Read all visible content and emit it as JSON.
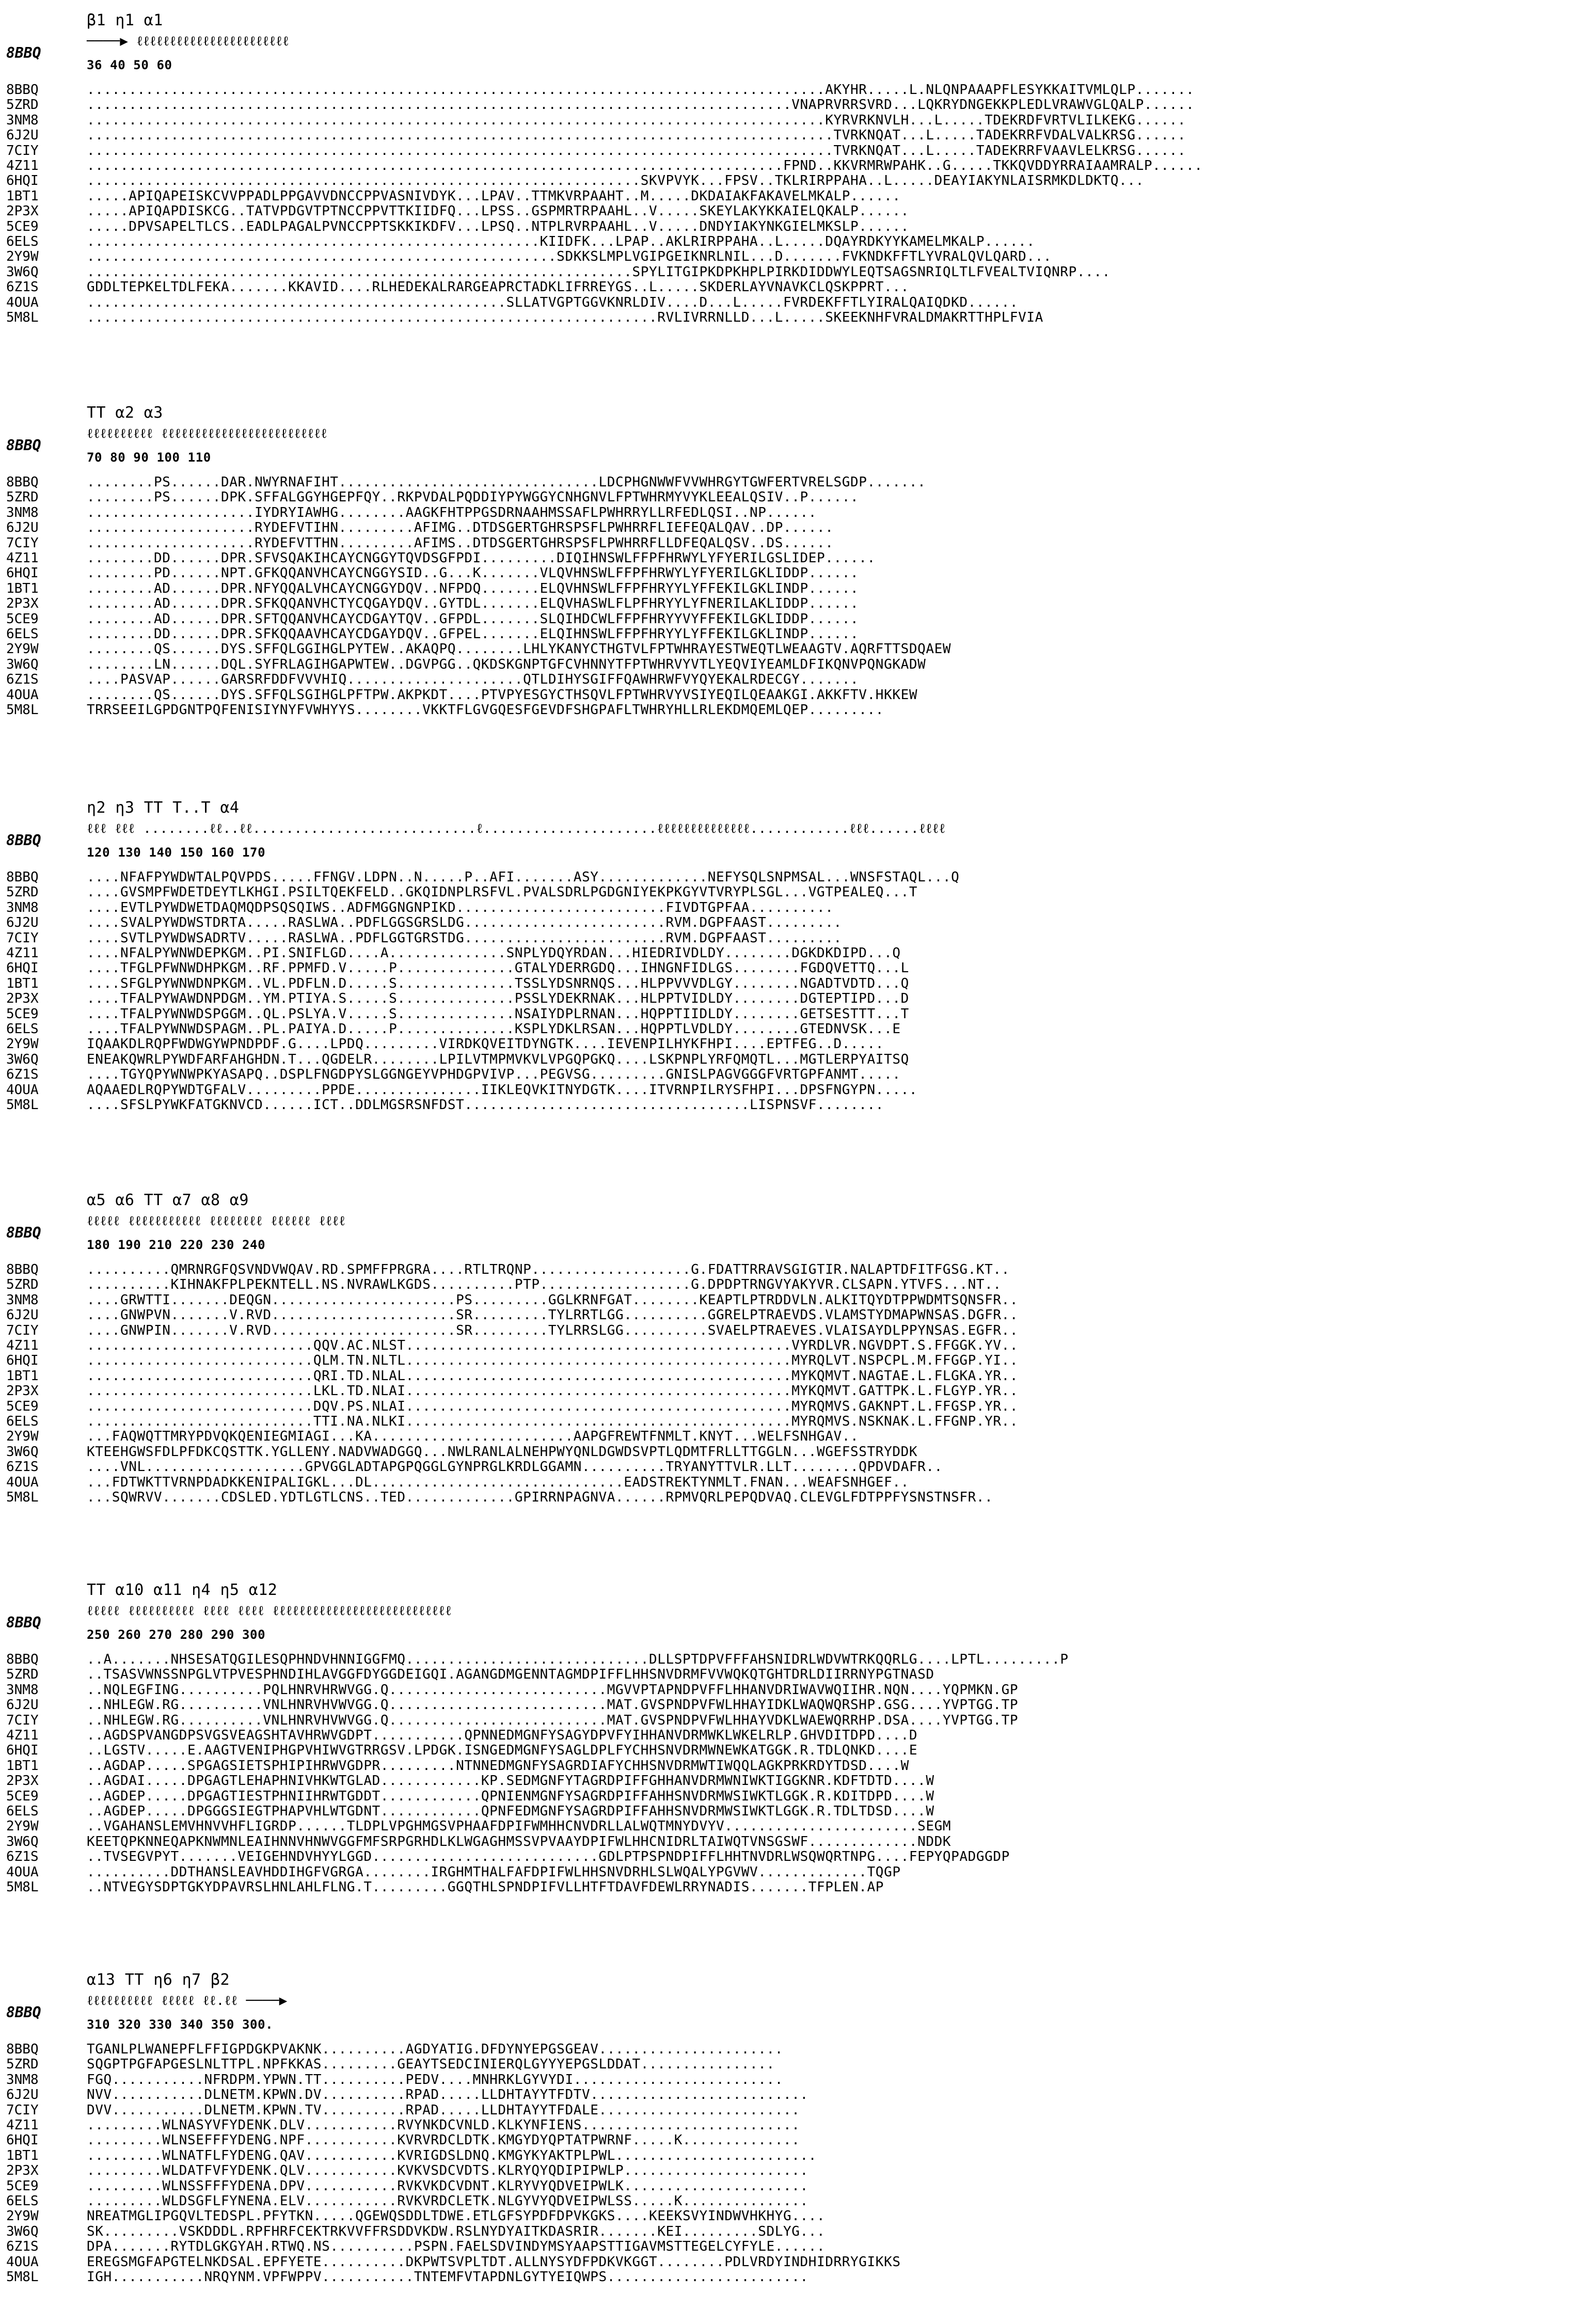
{
  "reference": "8BBQ",
  "blocks": [
    {
      "ss": "                                                                                                β1           η1                α1",
      "ss_sym": "                                                                                          ────▶              ℓℓℓℓℓℓℓℓℓℓℓℓℓℓℓℓℓℓℓℓℓℓℓ",
      "nums": "                                                                                       36     40                   50             60",
      "rows": [
        {
          "id": "8BBQ",
          "seq": "........................................................................................AKYHR.....L.NLQNPAAAPFLESYKKAITVMLQLP......."
        },
        {
          "id": "5ZRD",
          "seq": "....................................................................................VNAPRVRRSVRD...LQKRYDNGEKKPLEDLVRAWVGLQALP......"
        },
        {
          "id": "3NM8",
          "seq": "........................................................................................KYRVRKNVLH...L.....TDEKRDFVRTVLILKEKG......"
        },
        {
          "id": "6J2U",
          "seq": ".........................................................................................TVRKNQAT...L.....TADEKRRFVDALVALKRSG......"
        },
        {
          "id": "7CIY",
          "seq": ".........................................................................................TVRKNQAT...L.....TADEKRRFVAAVLELKRSG......"
        },
        {
          "id": "4Z11",
          "seq": "...................................................................................FPND..KKVRMRWPAHK..G.....TKKQVDDYRRAIAAMRALP......"
        },
        {
          "id": "6HQI",
          "seq": "..................................................................SKVPVYK...FPSV..TKLRIRPPAHA..L.....DEAYIAKYNLAISRMKDLDKTQ..."
        },
        {
          "id": "1BT1",
          "seq": ".....APIQAPEISKCVVPPADLPPGAVVDNCCPPVASNIVDYK...LPAV..TTMKVRPAAHT..M.....DKDAIAKFAKAVELMKALP......"
        },
        {
          "id": "2P3X",
          "seq": ".....APIQAPDISKCG..TATVPDGVTPTNCCPPVTTKIIDFQ...LPSS..GSPMRTRPAAHL..V.....SKEYLAKYKKAIELQKALP......"
        },
        {
          "id": "5CE9",
          "seq": ".....DPVSAPELTLCS..EADLPAGALPVNCCPPTSKKIKDFV...LPSQ..NTPLRVRPAAHL..V.....DNDYIAKYNKGIELMKSLP......"
        },
        {
          "id": "6ELS",
          "seq": "......................................................KIIDFK...LPAP..AKLRIRPPAHA..L.....DQAYRDKYYKAMELMKALP......"
        },
        {
          "id": "2Y9W",
          "seq": "........................................................SDKKSLMPLVGIPGEIKNRLNIL...D.......FVKNDKFFTLYVRALQVLQARD..."
        },
        {
          "id": "3W6Q",
          "seq": ".................................................................SPYLITGIPKDPKHPLPIRKDIDDWYLEQTSAGSNRIQLTLFVEALTVIQNRP...."
        },
        {
          "id": "6Z1S",
          "seq": "GDDLTEPKELTDLFEKA.......KKAVID....RLHEDEKALRARGEAPRCTADKLIFRREYGS..L.....SKDERLAYVNAVKCLQSKPPRT..."
        },
        {
          "id": "4OUA",
          "seq": "..................................................SLLATVGPTGGVKNRLDIV....D...L.....FVRDEKFFTLYIRALQAIQDKD......"
        },
        {
          "id": "5M8L",
          "seq": "....................................................................RVLIVRRNLLD...L.....SKEEKNHFVRALDMAKRTTHPLFVIA"
        }
      ]
    },
    {
      "ss": "                  TT                                  α2                                             α3",
      "ss_sym": "                                    ℓℓℓℓℓℓℓℓℓℓ                                        ℓℓℓℓℓℓℓℓℓℓℓℓℓℓℓℓℓℓℓℓℓℓℓℓℓ",
      "nums": "                              70              80                                     90        100          110",
      "rows": [
        {
          "id": "8BBQ",
          "seq": "........PS......DAR.NWYRNAFIHT...............................LDCPHGNWWFVVWHRGYTGWFERTVRELSGDP......."
        },
        {
          "id": "5ZRD",
          "seq": "........PS......DPK.SFFALGGYHGEPFQY..RKPVDALPQDDIYPYWGGYCNHGNVLFPTWHRMYVYKLEEALQSIV..P......"
        },
        {
          "id": "3NM8",
          "seq": "....................IYDRYIAWHG........AAGKFHTPPGSDRNAAHMSSAFLPWHRRYLLRFEDLQSI..NP......"
        },
        {
          "id": "6J2U",
          "seq": "....................RYDEFVTIHN.........AFIMG..DTDSGERTGHRSPSFLPWHRRFLIEFEQALQAV..DP......"
        },
        {
          "id": "7CIY",
          "seq": "....................RYDEFVTTHN.........AFIMS..DTDSGERTGHRSPSFLPWHRRFLLDFEQALQSV..DS......"
        },
        {
          "id": "4Z11",
          "seq": "........DD......DPR.SFVSQAKIHCAYCNGGYTQVDSGFPDI.........DIQIHNSWLFFPFHRWYLYFYERILGSLIDEP......"
        },
        {
          "id": "6HQI",
          "seq": "........PD......NPT.GFKQQANVHCAYCNGGYSID..G...K.......VLQVHNSWLFFPFHRWYLYFYERILGKLIDDP......"
        },
        {
          "id": "1BT1",
          "seq": "........AD......DPR.NFYQQALVHCAYCNGGYDQV..NFPDQ.......ELQVHNSWLFFPFHRYYLYFFEKILGKLINDP......"
        },
        {
          "id": "2P3X",
          "seq": "........AD......DPR.SFKQQANVHCTYCQGAYDQV..GYTDL.......ELQVHASWLFLPFHRYYLYFNERILAKLIDDP......"
        },
        {
          "id": "5CE9",
          "seq": "........AD......DPR.SFTQQANVHCAYCDGAYTQV..GFPDL.......SLQIHDCWLFFPFHRYYVYFFEKILGKLIDDP......"
        },
        {
          "id": "6ELS",
          "seq": "........DD......DPR.SFKQQAAVHCAYCDGAYDQV..GFPEL.......ELQIHNSWLFFPFHRYYLYFFEKILGKLINDP......"
        },
        {
          "id": "2Y9W",
          "seq": "........QS......DYS.SFFQLGGIHGLPYTEW..AKAQPQ........LHLYKANYCTHGTVLFPTWHRAYESTWEQTLWEAAGTV.AQRFTTSDQAEW"
        },
        {
          "id": "3W6Q",
          "seq": "........LN......DQL.SYFRLAGIHGAPWTEW..DGVPGG..QKDSKGNPTGFCVHNNYTFPTWHRVYVTLYEQVIYEAMLDFIKQNVPQNGKADW"
        },
        {
          "id": "6Z1S",
          "seq": "....PASVAP......GARSRFDDFVVVHIQ.....................QTLDIHYSGIFFQAWHRWFVYQYEKALRDECGY......."
        },
        {
          "id": "4OUA",
          "seq": "........QS......DYS.SFFQLSGIHGLPFTPW.AKPKDT....PTVPYESGYCTHSQVLFPTWHRVYVSIYEQILQEAAKGI.AKKFTV.HKKEW"
        },
        {
          "id": "5M8L",
          "seq": "TRRSEEILGPDGNTPQFENISIYNYFVWHYYS........VKKTFLGVGQESFGEVDFSHGPAFLTWHRYHLLRLEKDMQEMLQEP........."
        }
      ]
    },
    {
      "ss": "                                      η2         η3       TT             T..T                                      α4",
      "ss_sym": "                   ℓℓℓ          ℓℓℓ  ........ℓℓ..ℓℓ...........................ℓ.....................ℓℓℓℓℓℓℓℓℓℓℓℓℓℓ............ℓℓℓ......ℓℓℓℓ",
      "nums": "                  120                       130                 140                                                150        160       170",
      "rows": [
        {
          "id": "8BBQ",
          "seq": "....NFAFPYWDWTALPQVPDS.....FFNGV.LDPN..N.....P..AFI.......ASY.............NEFYSQLSNPMSAL...WNSFSTAQL...Q"
        },
        {
          "id": "5ZRD",
          "seq": "....GVSMPFWDETDEYTLKHGI.PSILTQEKFELD..GKQIDNPLRSFVL.PVALSDRLPGDGNIYEKPKGYVTVRYPLSGL...VGTPEALEQ...T"
        },
        {
          "id": "3NM8",
          "seq": "....EVTLPYWDWETDAQMQDPSQSQIWS..ADFMGGNGNPIKD.........................FIVDTGPFAA.........."
        },
        {
          "id": "6J2U",
          "seq": "....SVALPYWDWSTDRTA.....RASLWA..PDFLGGSGRSLDG........................RVM.DGPFAAST........."
        },
        {
          "id": "7CIY",
          "seq": "....SVTLPYWDWSADRTV.....RASLWA..PDFLGGTGRSTDG........................RVM.DGPFAAST........."
        },
        {
          "id": "4Z11",
          "seq": "....NFALPYWNWDEPKGM..PI.SNIFLGD....A..............SNPLYDQYRDAN...HIEDRIVDLDY........DGKDKDIPD...Q"
        },
        {
          "id": "6HQI",
          "seq": "....TFGLPFWNWDHPKGM..RF.PPMFD.V.....P..............GTALYDERRGDQ...IHNGNFIDLGS........FGDQVETTQ...L"
        },
        {
          "id": "1BT1",
          "seq": "....SFGLPYWNWDNPKGM..VL.PDFLN.D.....S..............TSSLYDSNRNQS...HLPPVVVDLGY........NGADTVDTD...Q"
        },
        {
          "id": "2P3X",
          "seq": "....TFALPYWAWDNPDGM..YM.PTIYA.S.....S..............PSSLYDEKRNAK...HLPPTVIDLDY........DGTEPTIPD...D"
        },
        {
          "id": "5CE9",
          "seq": "....TFALPYWNWDSPGGM..QL.PSLYA.V.....S..............NSAIYDPLRNAN...HQPPTIIDLDY........GETSESTTT...T"
        },
        {
          "id": "6ELS",
          "seq": "....TFALPYWNWDSPAGM..PL.PAIYA.D.....P..............KSPLYDKLRSAN...HQPPTLVDLDY........GTEDNVSK...E"
        },
        {
          "id": "2Y9W",
          "seq": "IQAAKDLRQPFWDWGYWPNDPDF.G....LPDQ.........VIRDKQVEITDYNGTK....IEVENPILHYKFHPI....EPTFEG..D....."
        },
        {
          "id": "3W6Q",
          "seq": "ENEAKQWRLPYWDFARFAHGHDN.T...QGDELR........LPILVTMPMVKVLVPGQPGKQ....LSKPNPLYRFQMQTL...MGTLERPYAITSQ"
        },
        {
          "id": "6Z1S",
          "seq": "....TGYQPYWNWPKYASAPQ..DSPLFNGDPYSLGGNGEYVPHDGPVIVP...PEGVSG.........GNISLPAGVGGGFVRTGPFANMT....."
        },
        {
          "id": "4OUA",
          "seq": "AQAAEDLRQPYWDTGFALV.........PPDE...............IIKLEQVKITNYDGTK....ITVRNPILRYSFHPI...DPSFNGYPN....."
        },
        {
          "id": "5M8L",
          "seq": "....SFSLPYWKFATGKNVCD......ICT..DDLMGSRSNFDST..................................LISPNSVF........"
        }
      ]
    },
    {
      "ss": "   α5                            α6                     TT                                                       α7          α8          α9",
      "ss_sym": "         ℓℓℓℓℓ               ℓℓℓℓℓℓℓℓℓℓℓ                                                                        ℓℓℓℓℓℓℓℓ     ℓℓℓℓℓℓ        ℓℓℓℓ",
      "nums": "                           180                  190                                                       210          220          230         240",
      "rows": [
        {
          "id": "8BBQ",
          "seq": "..........QMRNRGFQSVNDVWQAV.RD.SPMFFPRGRA....RTLTRQNP...................G.FDATTRRAVSGIGTIR.NALAPTDFITFGSG.KT.."
        },
        {
          "id": "5ZRD",
          "seq": "..........KIHNAKFPLPEKNTELL.NS.NVRAWLKGDS..........PTP..................G.DPDPTRNGVYAKYVR.CLSAPN.YTVFS...NT.."
        },
        {
          "id": "3NM8",
          "seq": "....GRWTTI.......DEQGN......................PS.........GGLKRNFGAT........KEAPTLPTRDDVLN.ALKITQYDTPPWDMTSQNSFR.."
        },
        {
          "id": "6J2U",
          "seq": "....GNWPVN.......V.RVD......................SR.........TYLRRTLGG..........GGRELPTRAEVDS.VLAMSTYDMAPWNSAS.DGFR.."
        },
        {
          "id": "7CIY",
          "seq": "....GNWPIN.......V.RVD......................SR.........TYLRRSLGG..........SVAELPTRAEVES.VLAISAYDLPPYNSAS.EGFR.."
        },
        {
          "id": "4Z11",
          "seq": "...........................QQV.AC.NLST..............................................VYRDLVR.NGVDPT.S.FFGGK.YV.."
        },
        {
          "id": "6HQI",
          "seq": "...........................QLM.TN.NLTL..............................................MYRQLVT.NSPCPL.M.FFGGP.YI.."
        },
        {
          "id": "1BT1",
          "seq": "...........................QRI.TD.NLAL..............................................MYKQMVT.NAGTAE.L.FLGKA.YR.."
        },
        {
          "id": "2P3X",
          "seq": "...........................LKL.TD.NLAI..............................................MYKQMVT.GATTPK.L.FLGYP.YR.."
        },
        {
          "id": "5CE9",
          "seq": "...........................DQV.PS.NLAI..............................................MYRQMVS.GAKNPT.L.FFGSP.YR.."
        },
        {
          "id": "6ELS",
          "seq": "...........................TTI.NA.NLKI..............................................MYRQMVS.NSKNAK.L.FFGNP.YR.."
        },
        {
          "id": "2Y9W",
          "seq": "...FAQWQTTMRYPDVQKQENIEGMIAGI...KA........................AAPGFREWTFNMLT.KNYT...WELFSNHGAV.."
        },
        {
          "id": "3W6Q",
          "seq": "KTEEHGWSFDLPFDKCQSTTK.YGLLENY.NADVWADGGQ...NWLRANLALNEHPWYQNLDGWDSVPTLQDMTFRLLTTGGLN...WGEFSSTRYDDK"
        },
        {
          "id": "6Z1S",
          "seq": "....VNL...................GPVGGLADTAPGPQGGLGYNPRGLKRDLGGAMN..........TRYANYTTVLR.LLT........QPDVDAFR.."
        },
        {
          "id": "4OUA",
          "seq": "...FDTWKTTVRNPDADKKENIPALIGKL...DL..............................EADSTREKTYNMLT.FNAN...WEAFSNHGEF.."
        },
        {
          "id": "5M8L",
          "seq": "...SQWRVV.......CDSLED.YDTLGTLCNS..TED.............GPIRRNPAGNVA......RPMVQRLPEPQDVAQ.CLEVGLFDTPPFYSNSTNSFR.."
        }
      ]
    },
    {
      "ss": "           TT                α10        α11             η4                                                      η5                       α12",
      "ss_sym": "                           ℓℓℓℓℓ     ℓℓℓℓℓℓℓℓℓℓ        ℓℓℓℓ                                                    ℓℓℓℓ   ℓℓℓℓℓℓℓℓℓℓℓℓℓℓℓℓℓℓℓℓℓℓℓℓℓℓℓ",
      "nums": "                        250             260                  270                                                     280           290          300",
      "rows": [
        {
          "id": "8BBQ",
          "seq": "..A.......NHSESATQGILESQPHNDVHNNIGGFMQ.............................DLLSPTDPVFFFAHSNIDRLWDVWTRKQQRLG....LPTL.........P"
        },
        {
          "id": "5ZRD",
          "seq": "..TSASVWNSSNPGLVTPVESPHNDIHLAVGGFDYGGDEIGQI.AGANGDMGENNTAGMDPIFFLHHSNVDRMFVVWQKQTGHTDRLDIIRRNYPGTNASD"
        },
        {
          "id": "3NM8",
          "seq": "..NQLEGFING..........PQLHNRVHRWVGG.Q..........................MGVVPTAPNDPVFFLHHANVDRIWAVWQIIHR.NQN....YQPMKN.GP"
        },
        {
          "id": "6J2U",
          "seq": "..NHLEGW.RG..........VNLHNRVHVWVGG.Q..........................MAT.GVSPNDPVFWLHHAYIDKLWAQWQRSHP.GSG....YVPTGG.TP"
        },
        {
          "id": "7CIY",
          "seq": "..NHLEGW.RG..........VNLHNRVHVWVGG.Q..........................MAT.GVSPNDPVFWLHHAYVDKLWAEWQRRHP.DSA....YVPTGG.TP"
        },
        {
          "id": "4Z11",
          "seq": "..AGDSPVANGDPSVGSVEAGSHTAVHRWVGDPT...........QPNNEDMGNFYSAGYDPVFYIHHANVDRMWKLWKELRLP.GHVDITDPD....D"
        },
        {
          "id": "6HQI",
          "seq": "..LGSTV.....E.AAGTVENIPHGPVHIWVGTRRGSV.LPDGK.ISNGEDMGNFYSAGLDPLFYCHHSNVDRMWNEWKATGGK.R.TDLQNKD....E"
        },
        {
          "id": "1BT1",
          "seq": "..AGDAP.....SPGAGSIETSPHIPIHRWVGDPR.........NTNNEDMGNFYSAGRDIAFYCHHSNVDRMWTIWQQLAGKPRKRDYTDSD....W"
        },
        {
          "id": "2P3X",
          "seq": "..AGDAI.....DPGAGTLEHAPHNIVHKWTGLAD............KP.SEDMGNFYTAGRDPIFFGHHANVDRMWNIWKTIGGKNR.KDFTDTD....W"
        },
        {
          "id": "5CE9",
          "seq": "..AGDEP.....DPGAGTIESTPHNIIHRWTGDDT............QPNIENMGNFYSAGRDPIFFAHHSNVDRMWSIWKTLGGK.R.KDITDPD....W"
        },
        {
          "id": "6ELS",
          "seq": "..AGDEP.....DPGGGSIEGTPHAPVHLWTGDNT............QPNFEDMGNFYSAGRDPIFFAHHSNVDRMWSIWKTLGGK.R.TDLTDSD....W"
        },
        {
          "id": "2Y9W",
          "seq": "..VGAHANSLEMVHNVVHFLIGRDP......TLDPLVPGHMGSVPHAAFDPIFWMHHCNVDRLLALWQTMNYDVYV.......................SEGM"
        },
        {
          "id": "3W6Q",
          "seq": "KEETQPKNNEQAPKNWMNLEAIHNNVHNWVGGFMFSRPGRHDLKLWGAGHMSSVPVAAYDPIFWLHHCNIDRLTAIWQTVNSGSWF.............NDDK"
        },
        {
          "id": "6Z1S",
          "seq": "..TVSEGVPYT.......VEIGEHNDVHYYLGGD...........................GDLPTPSPNDPIFFLHHTNVDRLWSQWQRTNPG....FEPYQPADGGDP"
        },
        {
          "id": "4OUA",
          "seq": "..........DDTHANSLEAVHDDIHGFVGRGA........IRGHMTHALFAFDPIFWLHHSNVDRHLSLWQALYPGVWV.............TQGP"
        },
        {
          "id": "5M8L",
          "seq": "..NTVEGYSDPTGKYDPAVRSLHNLAHLFLNG.T.........GGQTHLSPNDPIFVLLHTFTDAVFDEWLRRYNADIS.......TFPLEN.AP"
        }
      ]
    },
    {
      "ss": "     α13                          TT                                        η6        η7     β2",
      "ss_sym": "       ℓℓℓℓℓℓℓℓℓℓ                                                          ℓℓℓℓℓ     ℓℓ.ℓℓ  ────▶",
      "nums": " 310             320           330                                            340          350         300.",
      "rows": [
        {
          "id": "8BBQ",
          "seq": "TGANLPLWANEPFLFFIGPDGKPVAKNK..........AGDYATIG.DFDYNYEPGSGEAV......................"
        },
        {
          "id": "5ZRD",
          "seq": "SQGPTPGFAPGESLNLTTPL.NPFKKAS.........GEAYTSEDCINIERQLGYYYEPGSLDDAT................"
        },
        {
          "id": "3NM8",
          "seq": "FGQ...........NFRDPM.YPWN.TT..........PEDV....MNHRKLGYVYDI........................."
        },
        {
          "id": "6J2U",
          "seq": "NVV...........DLNETM.KPWN.DV..........RPAD.....LLDHTAYYTFDTV.........................."
        },
        {
          "id": "7CIY",
          "seq": "DVV...........DLNETM.KPWN.TV..........RPAD.....LLDHTAYYTFDALE........................"
        },
        {
          "id": "4Z11",
          "seq": ".........WLNASYVFYDENK.DLV...........RVYNKDCVNLD.KLKYNFIENS.........................."
        },
        {
          "id": "6HQI",
          "seq": ".........WLNSEFFFYDENG.NPF...........KVRVRDCLDTK.KMGYDYQPTATPWRNF.....K.............."
        },
        {
          "id": "1BT1",
          "seq": ".........WLNATFLFYDENG.QAV...........KVRIGDSLDNQ.KMGYKYAKTPLPWL........................"
        },
        {
          "id": "2P3X",
          "seq": ".........WLDATFVFYDENK.QLV...........KVKVSDCVDTS.KLRYQYQDIPIPWLP......................"
        },
        {
          "id": "5CE9",
          "seq": ".........WLNSSFFFYDENA.DPV...........RVKVKDCVDNT.KLRYVYQDVEIPWLK......................"
        },
        {
          "id": "6ELS",
          "seq": ".........WLDSGFLFYNENA.ELV...........RVKVRDCLETK.NLGYVYQDVEIPWLSS.....K..............."
        },
        {
          "id": "2Y9W",
          "seq": "NREATMGLIPGQVLTEDSPL.PFYTKN.....QGEWQSDDLTDWE.ETLGFSYPDFDPVKGKS....KEEKSVYINDWVHKHYG...."
        },
        {
          "id": "3W6Q",
          "seq": "SK.........VSKDDDL.RPFHRFCEKTRKVVFFRSDDVKDW.RSLNYDYAITKDASRIR.......KEI.........SDLYG..."
        },
        {
          "id": "6Z1S",
          "seq": "DPA.......RYTDLGKGYAH.RTWQ.NS..........PSPN.FAELSDVINDYMSYAAPSTTIGAVMSTTEGELCYFYLE......"
        },
        {
          "id": "4OUA",
          "seq": "EREGSMGFAPGTELNKDSAL.EPFYETE..........DKPWTSVPLTDT.ALLNYSYDFPDKVKGGT........PDLVRDYINDHIDRRYGIKKS"
        },
        {
          "id": "5M8L",
          "seq": "IGH...........NRQYNM.VPFWPPV...........TNTEMFVTAPDNLGYTYEIQWPS........................"
        }
      ]
    }
  ]
}
